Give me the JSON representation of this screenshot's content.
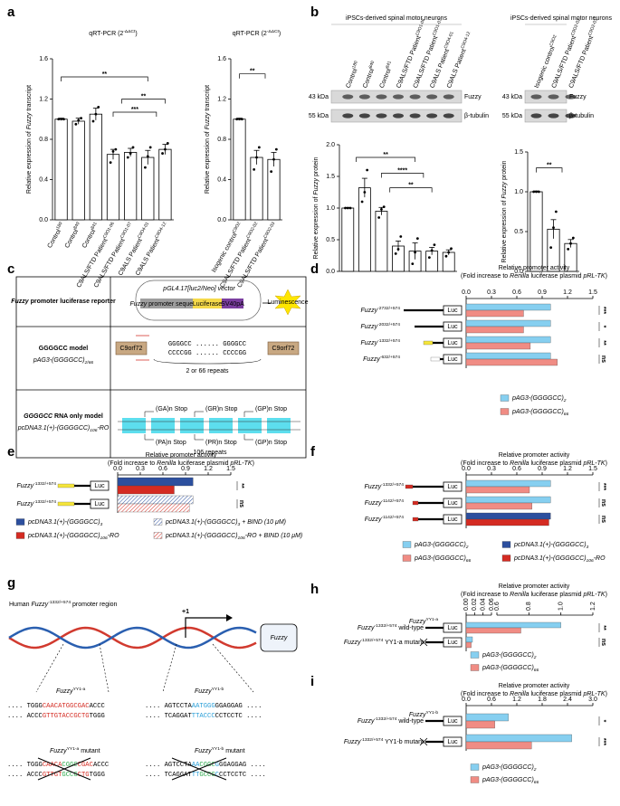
{
  "panel_labels": [
    "a",
    "b",
    "c",
    "d",
    "e",
    "f",
    "g",
    "h",
    "i"
  ],
  "blots": {
    "header_left": "iPSCs-derived spinal motor neurons",
    "header_right": "iPSCs-derived spinal motor neurons",
    "markers": [
      "43 kDa",
      "55 kDa"
    ],
    "bands": [
      "Fuzzy",
      "β-tubulin"
    ]
  },
  "diagram_c": {
    "row1_title": {
      "italic": "Fuzzy",
      "after": " promoter luciferase reporter"
    },
    "vector": {
      "italic": "pGL4.17[luc2/Neo] vector"
    },
    "promoter": {
      "italic": "Fuzzy",
      "after": " promoter sequence"
    },
    "luciferase": "Luciferase",
    "polyA": "SV40pA",
    "luminescence": "Luminescence",
    "row2_title": "GGGGCC model",
    "row2_construct": {
      "label": "pAG3-(GGGGCC)",
      "sub": "2/66"
    },
    "gene": "C9orf72",
    "repeat_top": "GGGGCC ...... GGGGCC",
    "repeat_bottom": "CCCCGG ...... CCCCGG",
    "repeat_count": "2 or 66 repeats",
    "row3_title": {
      "italic": "GGGGCC",
      "after": " RNA only model"
    },
    "row3_construct": {
      "label": "pcDNA3.1(+)-(GGGGCC)",
      "sub": "106",
      "after": "-RO"
    },
    "frames_top": [
      "(GA)n Stop",
      "(GR)n Stop",
      "(GP)n Stop"
    ],
    "frames_bottom": [
      "(PA)n Stop",
      "(PR)n Stop",
      "(GP)n Stop"
    ],
    "repeat_count3": "106 repeats"
  },
  "diagram_g": {
    "title": {
      "label": "Human ",
      "italic": "Fuzzy",
      "sup": "-1332/+574",
      "after": " promoter region"
    },
    "tss": "+1",
    "gene": "Fuzzy",
    "site_a": {
      "italic": "Fuzzy",
      "sup": "YY1-a"
    },
    "site_b": {
      "italic": "Fuzzy",
      "sup": "YY1-b"
    },
    "wt_a_top": [
      ".... TGGG",
      "CAACATGGCGAC",
      "ACCC"
    ],
    "wt_a_bottom": [
      ".... ACCC",
      "GTTGTACCGCTG",
      "TGGG"
    ],
    "wt_b_top": [
      ".... AGTCCTA",
      "AATGGG",
      "GGAGGAG ...."
    ],
    "wt_b_bottom": [
      ".... TCAGGAT",
      "TTACCC",
      "CCTCCTC ...."
    ],
    "mutant_a": {
      "italic": "Fuzzy",
      "sup": "YY1-a",
      "after": " mutant"
    },
    "mutant_b": {
      "italic": "Fuzzy",
      "sup": "YY1-b",
      "after": " mutant"
    },
    "mut_a_top": [
      ".... TGGG",
      "CAACA",
      "CGGC",
      "CGAC",
      "ACCC"
    ],
    "mut_a_bottom": [
      ".... ACCC",
      "GTTGT",
      "GCCG",
      "CTG",
      "TGGG"
    ],
    "mut_b_top": [
      ".... AGTCCTA",
      "AA",
      "CGGC",
      "G",
      "GGAGGAG ...."
    ],
    "mut_b_bottom": [
      ".... TCAGGAT",
      "TT",
      "GCCG",
      "C",
      "CCTCCTC ...."
    ]
  },
  "chart_data": [
    {
      "type": "bar",
      "title": {
        "label": "qRT-PCR (2",
        "sup": "-ΔΔCt",
        "after": ")"
      },
      "ylabel": {
        "label": "Relative expression of ",
        "italic": "Fuzzy",
        "after": " transcript"
      },
      "categories": [
        {
          "label": "Control",
          "sup": "180"
        },
        {
          "label": "Control",
          "sup": "840"
        },
        {
          "label": "Control",
          "sup": "841"
        },
        {
          "label": "C9ALS/FTD Patient",
          "sup": "C9O1-06"
        },
        {
          "label": "C9ALS/FTD Patient",
          "sup": "C9O1-07"
        },
        {
          "label": "C9ALS Patient",
          "sup": "C9O4-01"
        },
        {
          "label": "C9ALS Patient",
          "sup": "C9O4-12"
        }
      ],
      "values": [
        1.0,
        0.98,
        1.05,
        0.65,
        0.67,
        0.62,
        0.7
      ],
      "errors": [
        0.01,
        0.03,
        0.06,
        0.05,
        0.04,
        0.07,
        0.05
      ],
      "points": [
        [
          1.0,
          1.0,
          1.0
        ],
        [
          0.95,
          0.99,
          1.01
        ],
        [
          0.98,
          1.05,
          1.12
        ],
        [
          0.57,
          0.68,
          0.7
        ],
        [
          0.62,
          0.66,
          0.72
        ],
        [
          0.52,
          0.63,
          0.72
        ],
        [
          0.66,
          0.7,
          0.76
        ]
      ],
      "ylim": [
        0,
        1.6
      ],
      "yticks": [
        {
          "value": 0,
          "label": "0.0"
        },
        0.4,
        0.8,
        1.2,
        1.6
      ],
      "significance": [
        "**",
        "***",
        "**"
      ],
      "color": "#ffffff"
    },
    {
      "type": "bar",
      "title": {
        "label": "qRT-PCR (2",
        "sup": "-ΔΔCt",
        "after": ")"
      },
      "ylabel": {
        "label": "Relative expression of ",
        "italic": "Fuzzy",
        "after": " transcript"
      },
      "categories": [
        {
          "label": "Isogenic control",
          "sup": "C9O2"
        },
        {
          "label": "C9ALS/FTD Patient",
          "sup": "C9O2-02"
        },
        {
          "label": "C9ALS/FTD Patient",
          "sup": "C9O2-03"
        }
      ],
      "values": [
        1.0,
        0.62,
        0.6
      ],
      "errors": [
        0.01,
        0.07,
        0.07
      ],
      "points": [
        [
          1.0,
          1.0,
          1.0
        ],
        [
          0.5,
          0.62,
          0.72
        ],
        [
          0.48,
          0.6,
          0.7
        ]
      ],
      "ylim": [
        0,
        1.6
      ],
      "yticks": [
        {
          "value": 0,
          "label": "0.0"
        },
        0.4,
        0.8,
        1.2,
        1.6
      ],
      "significance": [
        "**"
      ],
      "color": "#ffffff"
    },
    {
      "type": "bar",
      "ylabel": {
        "label": "Relative expression of ",
        "italic": "Fuzzy",
        "after": " protein"
      },
      "categories": [
        {
          "label": "Control",
          "sup": "180"
        },
        {
          "label": "Control",
          "sup": "840"
        },
        {
          "label": "Control",
          "sup": "841"
        },
        {
          "label": "C9ALS/FTD Patient",
          "sup": "C9O1-06"
        },
        {
          "label": "C9ALS/FTD Patient",
          "sup": "C9O1-07"
        },
        {
          "label": "C9ALS Patient",
          "sup": "C9O4-01"
        },
        {
          "label": "C9ALS Patient",
          "sup": "C9O4-12"
        }
      ],
      "values": [
        1.0,
        1.32,
        0.95,
        0.4,
        0.32,
        0.32,
        0.3
      ],
      "errors": [
        0.01,
        0.15,
        0.06,
        0.08,
        0.13,
        0.06,
        0.04
      ],
      "points": [
        [
          1.0,
          1.0,
          1.0
        ],
        [
          1.1,
          1.25,
          1.6
        ],
        [
          0.85,
          0.98,
          1.02
        ],
        [
          0.28,
          0.35,
          0.55
        ],
        [
          0.12,
          0.3,
          0.52
        ],
        [
          0.22,
          0.33,
          0.42
        ],
        [
          0.24,
          0.3,
          0.36
        ]
      ],
      "ylim": [
        0,
        2.0
      ],
      "yticks": [
        {
          "value": 0,
          "label": "0.0"
        },
        0.5,
        {
          "value": 1,
          "label": "1.0"
        },
        1.5,
        {
          "value": 2,
          "label": "2.0"
        }
      ],
      "significance": [
        "**",
        "****",
        "**"
      ],
      "color": "#ffffff"
    },
    {
      "type": "bar",
      "ylabel": {
        "label": "Relative expression of ",
        "italic": "Fuzzy",
        "after": " protein"
      },
      "categories": [
        {
          "label": "Isogenic control",
          "sup": "C9O2"
        },
        {
          "label": "C9ALS/FTD Patient",
          "sup": "C9O2-02"
        },
        {
          "label": "C9ALS/FTD Patient",
          "sup": "C9O2-03"
        }
      ],
      "values": [
        1.0,
        0.53,
        0.35
      ],
      "errors": [
        0.01,
        0.12,
        0.05
      ],
      "points": [
        [
          1.0,
          1.0,
          1.0
        ],
        [
          0.3,
          0.55,
          0.75
        ],
        [
          0.28,
          0.35,
          0.42
        ]
      ],
      "ylim": [
        0,
        1.5
      ],
      "yticks": [
        {
          "value": 0,
          "label": "0.0"
        },
        0.5,
        {
          "value": 1,
          "label": "1.0"
        },
        1.5
      ],
      "significance": [
        "**"
      ],
      "color": "#ffffff"
    },
    {
      "type": "bar",
      "orientation": "horizontal",
      "title": "Relative promoter activity",
      "subtitle": {
        "label": "(Fold increase to ",
        "italic": "Renilla",
        "after": " luciferase plasmid ",
        "italic2": "pRL-TK",
        "after2": ")"
      },
      "categories": [
        {
          "italic": "Fuzzy",
          "sup": "-2732/+574"
        },
        {
          "italic": "Fuzzy",
          "sup": "-2032/+574"
        },
        {
          "italic": "Fuzzy",
          "sup": "-1332/+574"
        },
        {
          "italic": "Fuzzy",
          "sup": "-632/+574"
        }
      ],
      "series": [
        {
          "name": {
            "label": "pAG3-(GGGGCC)",
            "sub": "2"
          },
          "color": "#86cff0",
          "values": [
            1.0,
            1.0,
            1.0,
            1.0
          ]
        },
        {
          "name": {
            "label": "pAG3-(GGGGCC)",
            "sub": "66"
          },
          "color": "#f08c84",
          "values": [
            0.68,
            0.68,
            0.76,
            1.08
          ]
        }
      ],
      "xlim": [
        0,
        1.5
      ],
      "xticks": [
        {
          "value": 0,
          "label": "0.0"
        },
        0.3,
        0.6,
        0.9,
        1.2,
        1.5
      ],
      "significance": [
        "***",
        "*",
        "**",
        "ns"
      ],
      "construct_label": "Luc"
    },
    {
      "type": "bar",
      "orientation": "horizontal",
      "title": "Relative promoter activity",
      "subtitle": {
        "label": "(Fold increase to ",
        "italic": "Renilla",
        "after": " luciferase plasmid ",
        "italic2": "pRL-TK",
        "after2": ")"
      },
      "categories": [
        {
          "italic": "Fuzzy",
          "sup": "-1332/+574"
        },
        {
          "italic": "Fuzzy",
          "sup": "-1332/+574"
        }
      ],
      "series": [
        {
          "name": {
            "label": "pcDNA3.1(+)-(GGGGCC)",
            "sub": "3"
          },
          "color": "#2c4f9e",
          "values": [
            1.0,
            null
          ]
        },
        {
          "name": {
            "label": "pcDNA3.1(+)-(GGGGCC)",
            "sub": "106",
            "after": "-RO"
          },
          "color": "#d42b22",
          "values": [
            0.75,
            null
          ]
        },
        {
          "name": {
            "label": "pcDNA3.1(+)-(GGGGCC)",
            "sub": "3",
            "after": " + BIND (10 μM)"
          },
          "color": "#2c4f9e",
          "hatch": true,
          "values": [
            null,
            1.0
          ]
        },
        {
          "name": {
            "label": "pcDNA3.1(+)-(GGGGCC)",
            "sub": "106",
            "after": "-RO + BIND (10 μM)"
          },
          "color": "#d42b22",
          "hatch": true,
          "values": [
            null,
            0.95
          ]
        }
      ],
      "xlim": [
        0,
        1.5
      ],
      "xticks": [
        {
          "value": 0,
          "label": "0.0"
        },
        0.3,
        0.6,
        0.9,
        1.2,
        1.5
      ],
      "significance": [
        "**",
        "ns"
      ],
      "construct_label": "Luc"
    },
    {
      "type": "bar",
      "orientation": "horizontal",
      "title": "Relative promoter activity",
      "subtitle": {
        "label": "(Fold increase to ",
        "italic": "Renilla",
        "after": " luciferase plasmid ",
        "italic2": "pRL-TK",
        "after2": ")"
      },
      "categories": [
        {
          "italic": "Fuzzy",
          "sup": "-1332/+574"
        },
        {
          "italic": "Fuzzy",
          "sup": "-1142/+574"
        },
        {
          "italic": "Fuzzy",
          "sup": "-1142/+574"
        }
      ],
      "series": [
        {
          "name": {
            "label": "pAG3-(GGGGCC)",
            "sub": "2"
          },
          "color": "#86cff0",
          "values": [
            1.0,
            1.0,
            null
          ]
        },
        {
          "name": {
            "label": "pAG3-(GGGGCC)",
            "sub": "66"
          },
          "color": "#f08c84",
          "values": [
            0.75,
            0.78,
            null
          ]
        },
        {
          "name": {
            "label": "pcDNA3.1(+)-(GGGGCC)",
            "sub": "3"
          },
          "color": "#2c4f9e",
          "values": [
            null,
            null,
            1.0
          ]
        },
        {
          "name": {
            "label": "pcDNA3.1(+)-(GGGGCC)",
            "sub": "106",
            "after": "-RO"
          },
          "color": "#d42b22",
          "values": [
            null,
            null,
            0.98
          ]
        }
      ],
      "xlim": [
        0,
        1.5
      ],
      "xticks": [
        {
          "value": 0,
          "label": "0.0"
        },
        0.3,
        0.6,
        0.9,
        1.2,
        1.5
      ],
      "significance": [
        "***",
        "ns",
        "ns"
      ],
      "construct_label": "Luc"
    },
    {
      "type": "bar",
      "orientation": "horizontal",
      "title": "Relative promoter activity",
      "subtitle": {
        "label": "(Fold increase to ",
        "italic": "Renilla",
        "after": " luciferase plasmid ",
        "italic2": "pRL-TK",
        "after2": ")"
      },
      "categories": [
        {
          "italic": "Fuzzy",
          "sup": "-1332/+574",
          "after": " wild-type"
        },
        {
          "italic": "Fuzzy",
          "sup": "-1332/+574",
          "after": " YY1-a mutant"
        }
      ],
      "series": [
        {
          "name": {
            "label": "pAG3-(GGGGCC)",
            "sub": "2"
          },
          "color": "#86cff0",
          "values": [
            1.0,
            0.015
          ]
        },
        {
          "name": {
            "label": "pAG3-(GGGGCC)",
            "sub": "66"
          },
          "color": "#f08c84",
          "values": [
            0.75,
            0.012
          ]
        }
      ],
      "xlim": [
        0,
        1.2
      ],
      "axis_break": [
        0.06,
        0.6
      ],
      "xticks": [
        {
          "value": 0,
          "label": "0.00"
        },
        0.02,
        0.04,
        0.06,
        0.6,
        0.8,
        {
          "value": 1,
          "label": "1.0"
        },
        1.2
      ],
      "significance": [
        "**",
        "ns"
      ],
      "construct_label": "Luc",
      "site_label": {
        "italic": "Fuzzy",
        "sup": "YY1-a"
      },
      "site_color": "#d42b22"
    },
    {
      "type": "bar",
      "orientation": "horizontal",
      "title": "Relative promoter activity",
      "subtitle": {
        "label": "(Fold increase to ",
        "italic": "Renilla",
        "after": " luciferase plasmid ",
        "italic2": "pRL-TK",
        "after2": ")"
      },
      "categories": [
        {
          "italic": "Fuzzy",
          "sup": "-1332/+574",
          "after": " wild-type"
        },
        {
          "italic": "Fuzzy",
          "sup": "-1332/+574",
          "after": " YY1-b mutant"
        }
      ],
      "series": [
        {
          "name": {
            "label": "pAG3-(GGGGCC)",
            "sub": "2"
          },
          "color": "#86cff0",
          "values": [
            1.0,
            2.5
          ]
        },
        {
          "name": {
            "label": "pAG3-(GGGGCC)",
            "sub": "66"
          },
          "color": "#f08c84",
          "values": [
            0.68,
            1.55
          ]
        }
      ],
      "xlim": [
        0,
        3.0
      ],
      "xticks": [
        {
          "value": 0,
          "label": "0.0"
        },
        0.6,
        1.2,
        1.8,
        2.4,
        {
          "value": 3,
          "label": "3.0"
        }
      ],
      "significance": [
        "*",
        "***"
      ],
      "construct_label": "Luc",
      "site_label": {
        "italic": "Fuzzy",
        "sup": "YY1-b"
      },
      "site_color": "#2a9fd8"
    }
  ]
}
